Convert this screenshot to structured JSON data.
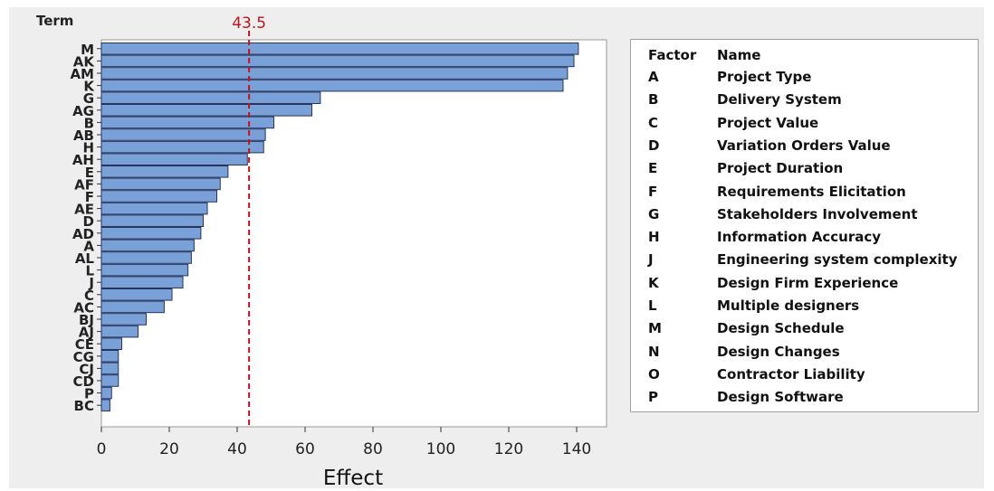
{
  "chart_data": {
    "type": "bar",
    "orientation": "horizontal",
    "y_axis_title": "Term",
    "xlabel": "Effect",
    "reference_line": {
      "value": 43.5,
      "label": "43.5"
    },
    "xlim": [
      0,
      150
    ],
    "x_ticks": [
      0,
      20,
      40,
      60,
      80,
      100,
      120,
      140
    ],
    "categories": [
      "M",
      "AK",
      "AM",
      "K",
      "G",
      "AG",
      "B",
      "AB",
      "H",
      "AH",
      "E",
      "AF",
      "F",
      "AE",
      "D",
      "AD",
      "A",
      "AL",
      "L",
      "J",
      "C",
      "AC",
      "BJ",
      "AJ",
      "CE",
      "CG",
      "CJ",
      "CD",
      "P",
      "BC"
    ],
    "values": [
      140.5,
      139.2,
      137.3,
      136.0,
      64.5,
      62.0,
      50.8,
      48.3,
      47.8,
      43.0,
      37.3,
      35.0,
      34.0,
      31.2,
      30.0,
      29.3,
      27.3,
      26.5,
      25.5,
      24.0,
      20.8,
      18.5,
      13.2,
      10.8,
      6.0,
      5.0,
      5.0,
      5.0,
      3.0,
      2.5
    ],
    "colors": {
      "bar_fill": "#7aa0d8",
      "bar_stroke": "#26345e",
      "reference_line": "#c0141c",
      "plot_bg": "#eeeeee"
    }
  },
  "legend": {
    "header_factor": "Factor",
    "header_name": "Name",
    "rows": [
      {
        "factor": "A",
        "name": "Project Type"
      },
      {
        "factor": "B",
        "name": "Delivery System"
      },
      {
        "factor": "C",
        "name": "Project Value"
      },
      {
        "factor": "D",
        "name": "Variation Orders Value"
      },
      {
        "factor": "E",
        "name": "Project Duration"
      },
      {
        "factor": "F",
        "name": "Requirements Elicitation"
      },
      {
        "factor": "G",
        "name": "Stakeholders Involvement"
      },
      {
        "factor": "H",
        "name": "Information Accuracy"
      },
      {
        "factor": "J",
        "name": "Engineering system complexity"
      },
      {
        "factor": "K",
        "name": "Design Firm Experience"
      },
      {
        "factor": "L",
        "name": "Multiple designers"
      },
      {
        "factor": "M",
        "name": "Design Schedule"
      },
      {
        "factor": "N",
        "name": "Design Changes"
      },
      {
        "factor": "O",
        "name": "Contractor Liability"
      },
      {
        "factor": "P",
        "name": "Design Software"
      }
    ]
  }
}
